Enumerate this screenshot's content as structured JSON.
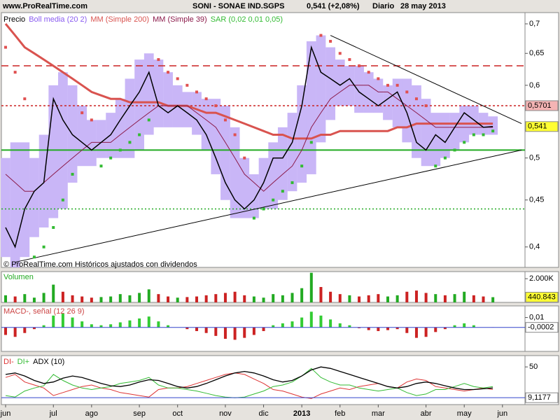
{
  "header": {
    "site": "www.ProRealTime.com",
    "symbol": "SONI - SONAE IND.SGPS",
    "price": "0,541 (+2,08%)",
    "period": "Diario",
    "date": "28 may 2013"
  },
  "chart_data": [
    {
      "type": "stock",
      "log": true,
      "note": "© ProRealTime.com Históricos ajustados con dividendos",
      "ylim": [
        0.38,
        0.72
      ],
      "yticks": [
        {
          "value": 0.4,
          "label": "0,4"
        },
        {
          "value": 0.45,
          "label": "0,45"
        },
        {
          "value": 0.5,
          "label": "0,5"
        },
        {
          "value": 0.6,
          "label": "0,6"
        },
        {
          "value": 0.65,
          "label": "0,65"
        },
        {
          "value": 0.7,
          "label": "0,7"
        }
      ],
      "series": [
        {
          "name": "Precio",
          "color": "#000000",
          "values": [
            0.42,
            0.4,
            0.44,
            0.46,
            0.47,
            0.58,
            0.55,
            0.53,
            0.52,
            0.51,
            0.52,
            0.53,
            0.55,
            0.57,
            0.59,
            0.62,
            0.57,
            0.56,
            0.57,
            0.56,
            0.55,
            0.53,
            0.5,
            0.47,
            0.45,
            0.44,
            0.45,
            0.47,
            0.5,
            0.5,
            0.52,
            0.57,
            0.66,
            0.62,
            0.61,
            0.6,
            0.61,
            0.59,
            0.58,
            0.57,
            0.58,
            0.59,
            0.56,
            0.52,
            0.51,
            0.53,
            0.52,
            0.54,
            0.56,
            0.55,
            0.54,
            0.541,
            null
          ]
        },
        {
          "name": "Boll media (20 2)",
          "color": "#c9b6f7",
          "upper": [
            0.5,
            0.52,
            0.52,
            0.5,
            0.53,
            0.6,
            0.62,
            0.6,
            0.57,
            0.55,
            0.55,
            0.56,
            0.58,
            0.61,
            0.64,
            0.65,
            0.64,
            0.62,
            0.6,
            0.59,
            0.59,
            0.58,
            0.58,
            0.57,
            0.54,
            0.5,
            0.48,
            0.5,
            0.52,
            0.54,
            0.56,
            0.6,
            0.67,
            0.68,
            0.66,
            0.64,
            0.63,
            0.63,
            0.62,
            0.61,
            0.6,
            0.61,
            0.61,
            0.6,
            0.58,
            0.56,
            0.56,
            0.56,
            0.57,
            0.57,
            0.56,
            0.555,
            null
          ],
          "lower": [
            0.39,
            0.38,
            0.39,
            0.41,
            0.42,
            0.43,
            0.44,
            0.47,
            0.49,
            0.49,
            0.5,
            0.5,
            0.5,
            0.5,
            0.51,
            0.53,
            0.54,
            0.54,
            0.54,
            0.54,
            0.53,
            0.51,
            0.48,
            0.45,
            0.43,
            0.43,
            0.43,
            0.44,
            0.44,
            0.45,
            0.46,
            0.47,
            0.48,
            0.52,
            0.55,
            0.57,
            0.57,
            0.56,
            0.56,
            0.56,
            0.55,
            0.54,
            0.52,
            0.5,
            0.49,
            0.49,
            0.5,
            0.51,
            0.52,
            0.53,
            0.53,
            0.53,
            null
          ]
        },
        {
          "name": "MM (Simple 200)",
          "color": "#d9534f",
          "values": [
            0.7,
            0.68,
            0.66,
            0.65,
            0.64,
            0.63,
            0.62,
            0.61,
            0.6,
            0.59,
            0.585,
            0.58,
            0.58,
            0.575,
            0.575,
            0.575,
            0.575,
            0.57,
            0.57,
            0.57,
            0.565,
            0.56,
            0.56,
            0.555,
            0.55,
            0.545,
            0.54,
            0.535,
            0.53,
            0.53,
            0.525,
            0.525,
            0.525,
            0.53,
            0.53,
            0.535,
            0.535,
            0.535,
            0.535,
            0.535,
            0.535,
            0.54,
            0.54,
            0.545,
            0.545,
            0.545,
            0.545,
            0.545,
            0.545,
            0.545,
            0.545,
            0.545,
            null
          ]
        },
        {
          "name": "MM (Simple 39)",
          "color": "#8b1a4a",
          "values": [
            0.48,
            0.47,
            0.46,
            0.46,
            0.47,
            0.48,
            0.49,
            0.5,
            0.51,
            0.52,
            0.52,
            0.52,
            0.53,
            0.54,
            0.55,
            0.56,
            0.57,
            0.57,
            0.57,
            0.57,
            0.56,
            0.55,
            0.54,
            0.52,
            0.5,
            0.48,
            0.47,
            0.46,
            0.47,
            0.48,
            0.49,
            0.51,
            0.54,
            0.56,
            0.58,
            0.59,
            0.6,
            0.6,
            0.6,
            0.59,
            0.59,
            0.58,
            0.57,
            0.56,
            0.55,
            0.54,
            0.54,
            0.54,
            0.54,
            0.54,
            0.54,
            0.54,
            null
          ]
        },
        {
          "name": "SAR (0,02 0,01 0,05)",
          "color": "#33bb33",
          "color_above": "#e05050",
          "values": [
            0.66,
            0.62,
            0.58,
            0.39,
            0.4,
            0.42,
            0.45,
            0.48,
            0.56,
            0.55,
            0.49,
            0.5,
            0.51,
            0.52,
            0.53,
            0.55,
            0.64,
            0.62,
            0.61,
            0.6,
            0.59,
            0.58,
            0.57,
            0.55,
            0.53,
            0.5,
            0.43,
            0.44,
            0.45,
            0.46,
            0.47,
            0.49,
            0.52,
            0.68,
            0.67,
            0.65,
            0.64,
            0.63,
            0.62,
            0.61,
            0.6,
            0.6,
            0.59,
            0.58,
            0.57,
            0.49,
            0.5,
            0.51,
            0.52,
            0.53,
            0.53,
            0.535,
            null
          ]
        }
      ],
      "hlines": [
        {
          "value": 0.63,
          "color": "#cc2222",
          "dash": "10 6"
        },
        {
          "value": 0.57,
          "color": "#cc2222",
          "dash": "3 3"
        },
        {
          "value": 0.51,
          "color": "#22aa22",
          "dash": "none"
        },
        {
          "value": 0.44,
          "color": "#22aa22",
          "dash": "2 3"
        }
      ],
      "trendlines": [
        {
          "x": [
            1,
            54
          ],
          "y": [
            0.385,
            0.51
          ]
        },
        {
          "x": [
            34,
            54
          ],
          "y": [
            0.68,
            0.545
          ]
        }
      ],
      "price_labels": [
        {
          "value": 0.5701,
          "label": "0,5701",
          "color": "#f4b4b4"
        },
        {
          "value": 0.541,
          "label": "0,541",
          "color": "#ffff33"
        }
      ]
    },
    {
      "type": "bar",
      "title": "Volumen",
      "title_color": "#22aa22",
      "up_color": "#22aa22",
      "down_color": "#cc2222",
      "ylim": [
        0,
        2600000
      ],
      "yticks": [
        {
          "value": 2000000,
          "label": "2.000K"
        }
      ],
      "values": [
        600000,
        500000,
        700000,
        400000,
        800000,
        1500000,
        900000,
        600000,
        500000,
        400000,
        450000,
        500000,
        700000,
        600000,
        800000,
        1100000,
        700000,
        500000,
        400000,
        450000,
        500000,
        600000,
        700000,
        800000,
        900000,
        600000,
        500000,
        400000,
        700000,
        600000,
        800000,
        1200000,
        2500000,
        1300000,
        900000,
        700000,
        600000,
        500000,
        600000,
        700000,
        500000,
        600000,
        900000,
        1000000,
        800000,
        700000,
        600000,
        700000,
        900000,
        600000,
        500000,
        440843,
        null
      ],
      "price_labels": [
        {
          "value": 440843,
          "label": "440.843",
          "color": "#ffff33"
        }
      ]
    },
    {
      "type": "histogram",
      "title": "MACD-, señal (12 26 9)",
      "title_color": "#cc4444",
      "pos_color": "#33cc33",
      "neg_color": "#cc2222",
      "ylim": [
        -0.025,
        0.022
      ],
      "yticks": [
        {
          "value": 0.01,
          "label": "0,01"
        }
      ],
      "values": [
        -0.008,
        -0.01,
        -0.006,
        -0.002,
        0.002,
        0.012,
        0.014,
        0.01,
        0.006,
        0.003,
        0.002,
        0.003,
        0.005,
        0.007,
        0.009,
        0.011,
        0.006,
        0.002,
        0.0,
        -0.002,
        -0.004,
        -0.006,
        -0.009,
        -0.012,
        -0.013,
        -0.011,
        -0.008,
        -0.004,
        0.002,
        0.004,
        0.006,
        0.01,
        0.016,
        0.012,
        0.008,
        0.004,
        0.002,
        -0.001,
        -0.003,
        -0.004,
        -0.003,
        -0.002,
        -0.006,
        -0.011,
        -0.01,
        -0.005,
        -0.002,
        0.002,
        0.004,
        0.002,
        0.0,
        -0.0002,
        null
      ],
      "price_labels": [
        {
          "value": -0.0002,
          "label": "-0,0002",
          "color": "#ffffff"
        }
      ]
    },
    {
      "type": "line",
      "ylim": [
        0,
        65
      ],
      "yticks": [
        50
      ],
      "categories": [
        "jun",
        null,
        null,
        null,
        null,
        "jul",
        null,
        null,
        null,
        "ago",
        null,
        null,
        null,
        null,
        "sep",
        null,
        null,
        null,
        "oct",
        null,
        null,
        null,
        null,
        "nov",
        null,
        null,
        null,
        "dic",
        null,
        null,
        null,
        "2013",
        null,
        null,
        null,
        "feb",
        null,
        null,
        null,
        "mar",
        null,
        null,
        null,
        null,
        "abr",
        null,
        null,
        null,
        "may",
        null,
        null,
        null,
        "jun"
      ],
      "series": [
        {
          "name": "DI-",
          "color": "#dd3333",
          "values": [
            36,
            40,
            30,
            26,
            22,
            12,
            16,
            20,
            24,
            26,
            22,
            20,
            16,
            14,
            12,
            10,
            20,
            22,
            22,
            24,
            28,
            32,
            36,
            40,
            42,
            40,
            34,
            28,
            20,
            18,
            14,
            10,
            8,
            14,
            18,
            22,
            20,
            24,
            26,
            28,
            24,
            22,
            30,
            34,
            32,
            24,
            22,
            20,
            18,
            20,
            22,
            20,
            null
          ]
        },
        {
          "name": "DI+",
          "color": "#33bb33",
          "values": [
            12,
            10,
            18,
            22,
            25,
            40,
            32,
            26,
            22,
            20,
            22,
            24,
            28,
            30,
            32,
            36,
            26,
            22,
            22,
            20,
            18,
            15,
            12,
            10,
            9,
            10,
            14,
            18,
            24,
            26,
            30,
            38,
            48,
            36,
            30,
            26,
            26,
            22,
            20,
            18,
            20,
            22,
            16,
            12,
            14,
            20,
            20,
            24,
            28,
            24,
            22,
            24,
            null
          ]
        },
        {
          "name": "ADX (10)",
          "color": "#000000",
          "values": [
            40,
            42,
            38,
            32,
            28,
            30,
            35,
            38,
            36,
            32,
            28,
            25,
            24,
            26,
            30,
            33,
            32,
            28,
            24,
            22,
            24,
            28,
            33,
            38,
            42,
            44,
            42,
            38,
            33,
            30,
            32,
            38,
            46,
            50,
            48,
            44,
            40,
            36,
            32,
            28,
            24,
            22,
            24,
            28,
            30,
            28,
            25,
            22,
            20,
            20,
            21,
            22,
            null
          ]
        }
      ],
      "price_labels": [
        {
          "value": 9.1177,
          "label": "9,1177",
          "color": "#ffffff"
        }
      ]
    }
  ]
}
